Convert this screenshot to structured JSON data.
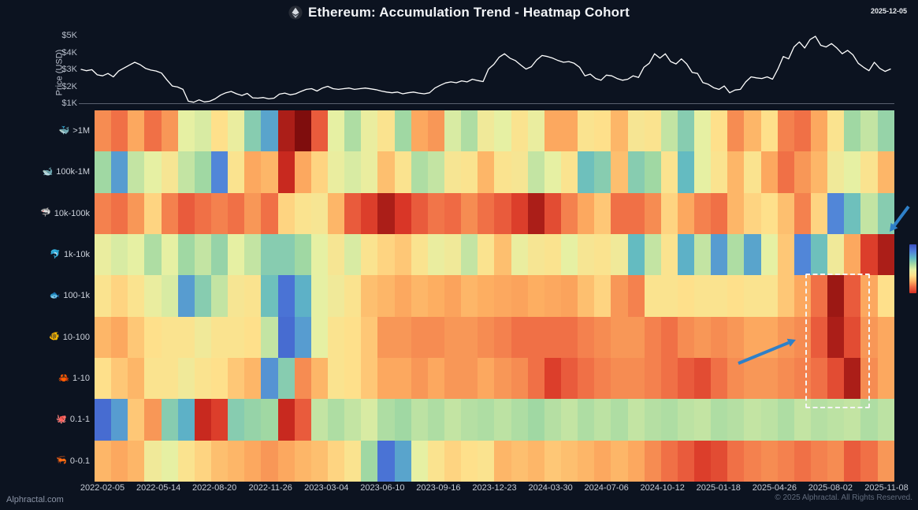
{
  "header": {
    "title": "Ethereum: Accumulation Trend - Heatmap Cohort",
    "date": "2025-12-05",
    "logo": "ethereum-icon"
  },
  "footer": {
    "watermark": "Alphractal.com",
    "copyright": "© 2025 Alphractal. All Rights Reserved."
  },
  "chart_data": {
    "type": "heatmap",
    "title": "Ethereum: Accumulation Trend - Heatmap Cohort",
    "price_panel": {
      "type": "line",
      "ylabel": "Price (USD)",
      "yticks": [
        "$5K",
        "$4K",
        "$3K",
        "$2K",
        "$1K"
      ],
      "ylim_usd": [
        1000,
        5000
      ],
      "line_color": "#ffffff",
      "series_usd": [
        3000,
        2920,
        2980,
        2680,
        2620,
        2760,
        2560,
        2900,
        3080,
        3250,
        3420,
        3280,
        3060,
        2960,
        2900,
        2780,
        2380,
        2020,
        1960,
        1820,
        1120,
        1060,
        1200,
        1080,
        1120,
        1260,
        1480,
        1620,
        1700,
        1560,
        1460,
        1580,
        1320,
        1300,
        1340,
        1260,
        1300,
        1540,
        1600,
        1500,
        1560,
        1700,
        1820,
        1860,
        1720,
        1900,
        2000,
        1860,
        1820,
        1860,
        1900,
        1820,
        1860,
        1900,
        1850,
        1800,
        1720,
        1660,
        1620,
        1660,
        1560,
        1620,
        1660,
        1600,
        1560,
        1620,
        1900,
        2060,
        2200,
        2260,
        2210,
        2320,
        2260,
        2420,
        2340,
        2280,
        3020,
        3300,
        3720,
        3920,
        3660,
        3520,
        3260,
        3020,
        3160,
        3560,
        3820,
        3760,
        3660,
        3520,
        3420,
        3460,
        3360,
        3120,
        2620,
        2720,
        2460,
        2360,
        2660,
        2620,
        2460,
        2360,
        2420,
        2620,
        2520,
        3120,
        3360,
        3920,
        3660,
        3920,
        3460,
        3320,
        3620,
        3320,
        2820,
        2760,
        2220,
        2120,
        1920,
        1820,
        2020,
        1620,
        1780,
        1820,
        2260,
        2560,
        2500,
        2460,
        2560,
        2420,
        3020,
        3760,
        3620,
        4320,
        4620,
        4260,
        4760,
        4950,
        4420,
        4320,
        4520,
        4260,
        3920,
        4120,
        3860,
        3360,
        3120,
        2920,
        3420,
        3060,
        2880,
        3020
      ]
    },
    "heatmap": {
      "value_scale": "0 = blue, 0.5 = pale yellow, 1 = dark red",
      "colormap_stops": [
        [
          0,
          "#3b4fc1"
        ],
        [
          0.13,
          "#4f7edb"
        ],
        [
          0.27,
          "#5fb9c4"
        ],
        [
          0.4,
          "#a0d8a3"
        ],
        [
          0.5,
          "#e6f0a3"
        ],
        [
          0.62,
          "#fee08b"
        ],
        [
          0.74,
          "#fdae61"
        ],
        [
          0.86,
          "#ef6a44"
        ],
        [
          0.94,
          "#d62f23"
        ],
        [
          1,
          "#7f0d0d"
        ]
      ],
      "xticks": [
        "2022-02-05",
        "2022-05-14",
        "2022-08-20",
        "2022-11-26",
        "2023-03-04",
        "2023-06-10",
        "2023-09-16",
        "2023-12-23",
        "2024-03-30",
        "2024-07-06",
        "2024-10-12",
        "2025-01-18",
        "2025-04-26",
        "2025-08-02",
        "2025-11-08"
      ],
      "cohorts": [
        {
          "label": ">1M",
          "icon": "🐳"
        },
        {
          "label": "100k-1M",
          "icon": "🐋"
        },
        {
          "label": "10k-100k",
          "icon": "🦈"
        },
        {
          "label": "1k-10k",
          "icon": "🐬"
        },
        {
          "label": "100-1k",
          "icon": "🐟"
        },
        {
          "label": "10-100",
          "icon": "🐠"
        },
        {
          "label": "1-10",
          "icon": "🦀"
        },
        {
          "label": "0.1-1",
          "icon": "🐙"
        },
        {
          "label": "0-0.1",
          "icon": "🦐"
        }
      ],
      "rows": [
        [
          0.8,
          0.85,
          0.75,
          0.85,
          0.78,
          0.5,
          0.48,
          0.62,
          0.52,
          0.35,
          0.22,
          0.97,
          1.0,
          0.88,
          0.5,
          0.42,
          0.52,
          0.6,
          0.4,
          0.75,
          0.78,
          0.48,
          0.42,
          0.55,
          0.5,
          0.6,
          0.52,
          0.75,
          0.75,
          0.6,
          0.62,
          0.72,
          0.58,
          0.6,
          0.45,
          0.35,
          0.5,
          0.62,
          0.8,
          0.72,
          0.62,
          0.82,
          0.85,
          0.75,
          0.6,
          0.4,
          0.45,
          0.38
        ],
        [
          0.4,
          0.2,
          0.45,
          0.5,
          0.58,
          0.45,
          0.4,
          0.15,
          0.6,
          0.75,
          0.72,
          0.95,
          0.75,
          0.65,
          0.52,
          0.48,
          0.52,
          0.7,
          0.6,
          0.42,
          0.45,
          0.58,
          0.6,
          0.72,
          0.6,
          0.58,
          0.45,
          0.5,
          0.6,
          0.3,
          0.35,
          0.7,
          0.35,
          0.4,
          0.6,
          0.28,
          0.5,
          0.6,
          0.72,
          0.6,
          0.75,
          0.85,
          0.78,
          0.72,
          0.55,
          0.5,
          0.6,
          0.72
        ],
        [
          0.82,
          0.85,
          0.78,
          0.65,
          0.82,
          0.88,
          0.85,
          0.82,
          0.85,
          0.78,
          0.85,
          0.65,
          0.6,
          0.58,
          0.72,
          0.88,
          0.92,
          0.97,
          0.93,
          0.88,
          0.84,
          0.86,
          0.8,
          0.85,
          0.88,
          0.92,
          0.97,
          0.9,
          0.82,
          0.75,
          0.68,
          0.85,
          0.85,
          0.8,
          0.65,
          0.75,
          0.82,
          0.85,
          0.72,
          0.65,
          0.62,
          0.7,
          0.82,
          0.65,
          0.15,
          0.3,
          0.45,
          0.35
        ],
        [
          0.52,
          0.48,
          0.5,
          0.42,
          0.5,
          0.4,
          0.45,
          0.38,
          0.5,
          0.45,
          0.35,
          0.35,
          0.4,
          0.5,
          0.58,
          0.48,
          0.6,
          0.65,
          0.68,
          0.6,
          0.52,
          0.55,
          0.45,
          0.6,
          0.7,
          0.52,
          0.58,
          0.6,
          0.5,
          0.58,
          0.6,
          0.55,
          0.28,
          0.45,
          0.6,
          0.25,
          0.45,
          0.2,
          0.42,
          0.22,
          0.5,
          0.68,
          0.15,
          0.3,
          0.55,
          0.75,
          0.92,
          0.97
        ],
        [
          0.6,
          0.65,
          0.6,
          0.52,
          0.48,
          0.2,
          0.35,
          0.45,
          0.58,
          0.6,
          0.3,
          0.1,
          0.25,
          0.5,
          0.55,
          0.6,
          0.7,
          0.72,
          0.75,
          0.72,
          0.74,
          0.76,
          0.72,
          0.74,
          0.75,
          0.76,
          0.74,
          0.75,
          0.76,
          0.7,
          0.65,
          0.78,
          0.82,
          0.6,
          0.6,
          0.62,
          0.6,
          0.6,
          0.62,
          0.6,
          0.6,
          0.68,
          0.75,
          0.85,
          0.98,
          0.88,
          0.75,
          0.62
        ],
        [
          0.72,
          0.75,
          0.68,
          0.62,
          0.6,
          0.6,
          0.55,
          0.6,
          0.6,
          0.62,
          0.45,
          0.08,
          0.2,
          0.5,
          0.6,
          0.62,
          0.68,
          0.78,
          0.78,
          0.8,
          0.8,
          0.78,
          0.78,
          0.8,
          0.82,
          0.85,
          0.85,
          0.85,
          0.85,
          0.82,
          0.8,
          0.78,
          0.78,
          0.82,
          0.85,
          0.8,
          0.78,
          0.8,
          0.78,
          0.75,
          0.75,
          0.78,
          0.8,
          0.88,
          0.97,
          0.9,
          0.78,
          0.75
        ],
        [
          0.62,
          0.68,
          0.72,
          0.6,
          0.6,
          0.55,
          0.6,
          0.62,
          0.68,
          0.72,
          0.18,
          0.35,
          0.8,
          0.72,
          0.6,
          0.62,
          0.68,
          0.75,
          0.75,
          0.78,
          0.75,
          0.78,
          0.78,
          0.75,
          0.78,
          0.8,
          0.85,
          0.92,
          0.88,
          0.85,
          0.82,
          0.8,
          0.8,
          0.82,
          0.85,
          0.88,
          0.9,
          0.85,
          0.8,
          0.78,
          0.78,
          0.8,
          0.82,
          0.85,
          0.9,
          0.97,
          0.8,
          0.75
        ],
        [
          0.08,
          0.2,
          0.68,
          0.78,
          0.35,
          0.25,
          0.95,
          0.92,
          0.35,
          0.38,
          0.4,
          0.95,
          0.88,
          0.45,
          0.42,
          0.45,
          0.48,
          0.42,
          0.4,
          0.44,
          0.42,
          0.45,
          0.43,
          0.42,
          0.44,
          0.42,
          0.4,
          0.43,
          0.45,
          0.42,
          0.44,
          0.42,
          0.45,
          0.43,
          0.42,
          0.44,
          0.45,
          0.42,
          0.43,
          0.45,
          0.44,
          0.42,
          0.45,
          0.43,
          0.44,
          0.45,
          0.42,
          0.44
        ],
        [
          0.72,
          0.75,
          0.72,
          0.55,
          0.5,
          0.6,
          0.65,
          0.7,
          0.72,
          0.75,
          0.78,
          0.75,
          0.72,
          0.7,
          0.65,
          0.6,
          0.4,
          0.1,
          0.22,
          0.5,
          0.6,
          0.65,
          0.62,
          0.6,
          0.72,
          0.7,
          0.72,
          0.68,
          0.7,
          0.72,
          0.75,
          0.72,
          0.75,
          0.8,
          0.85,
          0.88,
          0.92,
          0.9,
          0.85,
          0.82,
          0.8,
          0.82,
          0.85,
          0.82,
          0.8,
          0.88,
          0.85,
          0.78
        ]
      ]
    },
    "annotations": {
      "arrow_color": "#2f80c8",
      "arrows": [
        "arrow pointing to dark red end of 1k-10k row",
        "arrow pointing to dashed highlight box"
      ],
      "highlight_box": {
        "style": "dashed",
        "color": "#ffffff",
        "covers_cohorts": [
          "100-1k",
          "10-100",
          "1-10"
        ],
        "period": "around 2025-08"
      }
    }
  }
}
